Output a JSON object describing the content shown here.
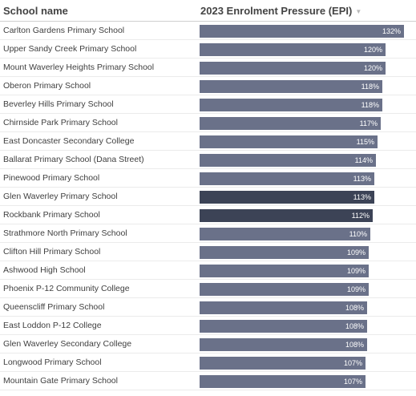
{
  "header": {
    "school_col": "School name",
    "epi_col": "2023 Enrolment Pressure (EPI)",
    "sort_icon": "sort-desc-icon"
  },
  "colors": {
    "bar": "#6a7189",
    "bar_dark": "#3c4356"
  },
  "rows": [
    {
      "name": "Carlton Gardens Primary School",
      "value": 132,
      "label": "132%"
    },
    {
      "name": "Upper Sandy Creek Primary School",
      "value": 120,
      "label": "120%"
    },
    {
      "name": "Mount Waverley Heights Primary School",
      "value": 120,
      "label": "120%"
    },
    {
      "name": "Oberon Primary School",
      "value": 118,
      "label": "118%"
    },
    {
      "name": "Beverley Hills Primary School",
      "value": 118,
      "label": "118%"
    },
    {
      "name": "Chirnside Park Primary School",
      "value": 117,
      "label": "117%"
    },
    {
      "name": "East Doncaster Secondary College",
      "value": 115,
      "label": "115%"
    },
    {
      "name": "Ballarat Primary School (Dana Street)",
      "value": 114,
      "label": "114%"
    },
    {
      "name": "Pinewood Primary School",
      "value": 113,
      "label": "113%"
    },
    {
      "name": "Glen Waverley Primary School",
      "value": 113,
      "label": "113%",
      "highlight": true
    },
    {
      "name": "Rockbank Primary School",
      "value": 112,
      "label": "112%",
      "highlight": true
    },
    {
      "name": "Strathmore North Primary School",
      "value": 110,
      "label": "110%"
    },
    {
      "name": "Clifton Hill Primary School",
      "value": 109,
      "label": "109%"
    },
    {
      "name": "Ashwood High School",
      "value": 109,
      "label": "109%"
    },
    {
      "name": "Phoenix P-12 Community College",
      "value": 109,
      "label": "109%"
    },
    {
      "name": "Queenscliff Primary School",
      "value": 108,
      "label": "108%"
    },
    {
      "name": "East Loddon P-12 College",
      "value": 108,
      "label": "108%"
    },
    {
      "name": "Glen Waverley Secondary College",
      "value": 108,
      "label": "108%"
    },
    {
      "name": "Longwood Primary School",
      "value": 107,
      "label": "107%"
    },
    {
      "name": "Mountain Gate Primary School",
      "value": 107,
      "label": "107%"
    }
  ],
  "chart_data": {
    "type": "bar",
    "title": "",
    "xlabel": "2023 Enrolment Pressure (EPI)",
    "ylabel": "School name",
    "unit": "%",
    "xlim": [
      0,
      132
    ],
    "categories": [
      "Carlton Gardens Primary School",
      "Upper Sandy Creek Primary School",
      "Mount Waverley Heights Primary School",
      "Oberon Primary School",
      "Beverley Hills Primary School",
      "Chirnside Park Primary School",
      "East Doncaster Secondary College",
      "Ballarat Primary School (Dana Street)",
      "Pinewood Primary School",
      "Glen Waverley Primary School",
      "Rockbank Primary School",
      "Strathmore North Primary School",
      "Clifton Hill Primary School",
      "Ashwood High School",
      "Phoenix P-12 Community College",
      "Queenscliff Primary School",
      "East Loddon P-12 College",
      "Glen Waverley Secondary College",
      "Longwood Primary School",
      "Mountain Gate Primary School"
    ],
    "values": [
      132,
      120,
      120,
      118,
      118,
      117,
      115,
      114,
      113,
      113,
      112,
      110,
      109,
      109,
      109,
      108,
      108,
      108,
      107,
      107
    ]
  }
}
